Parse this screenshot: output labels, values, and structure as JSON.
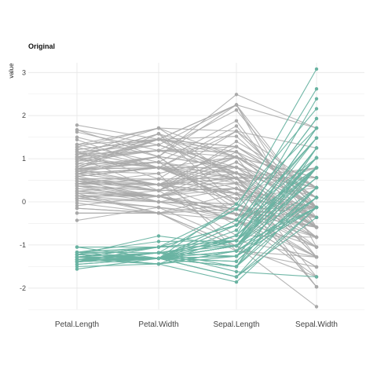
{
  "chart_data": {
    "type": "line",
    "subtype": "parallel-coordinates",
    "title": "Original",
    "ylabel": "value",
    "categories": [
      "Petal.Length",
      "Petal.Width",
      "Sepal.Length",
      "Sepal.Width"
    ],
    "ylim": [
      -2.45,
      3.15
    ],
    "yticks": [
      -2,
      -1,
      0,
      1,
      2,
      3
    ],
    "grid": true,
    "legend": "none",
    "colors": {
      "highlight": "#69b3a2",
      "other": "#a9a9a9",
      "grid": "#e6e6e6"
    },
    "series": [
      {
        "group": "highlight",
        "lines": [
          [
            -1.34,
            -1.31,
            -0.9,
            1.02
          ],
          [
            -1.34,
            -1.31,
            -1.14,
            -0.13
          ],
          [
            -1.39,
            -1.31,
            -1.38,
            0.33
          ],
          [
            -1.28,
            -1.31,
            -1.5,
            0.1
          ],
          [
            -1.34,
            -1.31,
            -1.02,
            1.25
          ],
          [
            -1.17,
            -1.05,
            -0.54,
            1.93
          ],
          [
            -1.34,
            -1.18,
            -1.5,
            0.79
          ],
          [
            -1.28,
            -1.31,
            -1.02,
            0.79
          ],
          [
            -1.34,
            -1.31,
            -1.74,
            -0.36
          ],
          [
            -1.28,
            -1.44,
            -1.14,
            0.1
          ],
          [
            -1.28,
            -1.31,
            -0.54,
            1.48
          ],
          [
            -1.22,
            -1.31,
            -1.26,
            0.79
          ],
          [
            -1.34,
            -1.44,
            -1.26,
            -0.13
          ],
          [
            -1.5,
            -1.44,
            -1.86,
            -0.13
          ],
          [
            -1.45,
            -1.31,
            -0.05,
            2.16
          ],
          [
            -1.28,
            -1.05,
            -0.17,
            3.08
          ],
          [
            -1.39,
            -1.05,
            -0.54,
            1.93
          ],
          [
            -1.34,
            -1.18,
            -0.9,
            1.02
          ],
          [
            -1.17,
            -1.18,
            -0.17,
            1.71
          ],
          [
            -1.28,
            -1.18,
            -0.9,
            1.71
          ],
          [
            -1.17,
            -1.31,
            -0.54,
            0.79
          ],
          [
            -1.28,
            -1.05,
            -0.9,
            1.48
          ],
          [
            -1.56,
            -1.31,
            -1.5,
            1.25
          ],
          [
            -1.17,
            -0.92,
            -0.9,
            0.56
          ],
          [
            -1.05,
            -1.31,
            -1.26,
            0.79
          ],
          [
            -1.22,
            -1.31,
            -1.02,
            -0.13
          ],
          [
            -1.22,
            -1.05,
            -1.02,
            0.79
          ],
          [
            -1.28,
            -1.31,
            -0.78,
            1.02
          ],
          [
            -1.34,
            -1.31,
            -0.78,
            0.79
          ],
          [
            -1.22,
            -1.31,
            -1.38,
            0.33
          ],
          [
            -1.22,
            -1.31,
            -1.26,
            0.1
          ],
          [
            -1.28,
            -1.05,
            -0.54,
            0.79
          ],
          [
            -1.28,
            -1.44,
            -0.78,
            2.39
          ],
          [
            -1.34,
            -1.31,
            -0.42,
            2.62
          ],
          [
            -1.28,
            -1.31,
            -1.14,
            0.1
          ],
          [
            -1.45,
            -1.31,
            -1.02,
            0.33
          ],
          [
            -1.39,
            -1.31,
            -0.42,
            1.02
          ],
          [
            -1.34,
            -1.44,
            -1.14,
            1.25
          ],
          [
            -1.39,
            -1.31,
            -1.74,
            -0.13
          ],
          [
            -1.28,
            -1.31,
            -0.9,
            0.79
          ],
          [
            -1.39,
            -1.18,
            -1.02,
            1.02
          ],
          [
            -1.39,
            -1.18,
            -1.62,
            -1.74
          ],
          [
            -1.39,
            -1.31,
            -1.74,
            0.33
          ],
          [
            -1.22,
            -0.79,
            -1.02,
            1.02
          ],
          [
            -1.05,
            -1.05,
            -0.9,
            1.71
          ],
          [
            -1.34,
            -1.18,
            -1.26,
            -0.13
          ],
          [
            -1.22,
            -1.31,
            -0.9,
            1.71
          ],
          [
            -1.34,
            -1.31,
            -1.5,
            0.33
          ],
          [
            -1.28,
            -1.31,
            -0.66,
            1.48
          ],
          [
            -1.34,
            -1.31,
            -1.02,
            0.56
          ]
        ]
      },
      {
        "group": "other",
        "lines": [
          [
            0.54,
            0.26,
            1.4,
            0.33
          ],
          [
            0.42,
            0.4,
            0.67,
            0.33
          ],
          [
            0.65,
            0.4,
            1.28,
            0.1
          ],
          [
            0.14,
            0.13,
            -0.42,
            -1.74
          ],
          [
            0.48,
            0.4,
            0.8,
            -0.59
          ],
          [
            0.42,
            0.13,
            -0.17,
            -0.59
          ],
          [
            0.54,
            0.53,
            0.55,
            0.56
          ],
          [
            -0.26,
            -0.26,
            -1.14,
            -1.51
          ],
          [
            0.48,
            0.13,
            0.92,
            -0.36
          ],
          [
            0.08,
            0.26,
            -0.78,
            -0.82
          ],
          [
            -0.15,
            -0.26,
            -1.02,
            -2.43
          ],
          [
            0.25,
            0.4,
            0.07,
            -0.13
          ],
          [
            0.14,
            -0.26,
            0.19,
            -1.97
          ],
          [
            0.54,
            0.26,
            0.31,
            -0.36
          ],
          [
            -0.09,
            0.13,
            -0.29,
            -0.36
          ],
          [
            0.37,
            0.26,
            1.04,
            0.1
          ],
          [
            0.42,
            0.4,
            -0.29,
            -0.13
          ],
          [
            0.2,
            -0.26,
            -0.05,
            -0.82
          ],
          [
            0.42,
            0.4,
            0.43,
            -1.97
          ],
          [
            0.08,
            -0.13,
            -0.29,
            -1.28
          ],
          [
            0.59,
            0.79,
            0.07,
            0.33
          ],
          [
            0.14,
            0.13,
            0.31,
            -0.59
          ],
          [
            0.65,
            0.4,
            0.55,
            -1.28
          ],
          [
            0.54,
            0.0,
            0.31,
            -0.59
          ],
          [
            0.31,
            0.13,
            0.67,
            -0.36
          ],
          [
            0.37,
            0.26,
            0.92,
            -0.13
          ],
          [
            0.59,
            0.26,
            1.16,
            -0.59
          ],
          [
            0.71,
            0.66,
            1.04,
            -0.13
          ],
          [
            0.42,
            0.4,
            0.19,
            -0.36
          ],
          [
            -0.15,
            -0.26,
            -0.17,
            -1.05
          ],
          [
            0.03,
            -0.13,
            -0.42,
            -1.51
          ],
          [
            -0.03,
            -0.26,
            -0.42,
            -1.51
          ],
          [
            0.08,
            0.0,
            -0.05,
            -0.82
          ],
          [
            0.76,
            0.79,
            0.19,
            -0.82
          ],
          [
            0.42,
            0.4,
            -0.54,
            -0.13
          ],
          [
            0.42,
            0.53,
            0.19,
            0.79
          ],
          [
            0.54,
            0.4,
            1.04,
            0.1
          ],
          [
            0.37,
            0.13,
            0.55,
            -1.74
          ],
          [
            0.2,
            0.13,
            -0.29,
            -0.13
          ],
          [
            0.14,
            0.13,
            -0.42,
            -1.28
          ],
          [
            0.37,
            0.0,
            -0.42,
            -1.05
          ],
          [
            0.48,
            0.26,
            0.31,
            -0.13
          ],
          [
            0.14,
            0.0,
            -0.05,
            -1.05
          ],
          [
            -0.26,
            -0.26,
            -1.02,
            -1.74
          ],
          [
            0.25,
            0.13,
            -0.29,
            -0.82
          ],
          [
            0.25,
            0.0,
            -0.17,
            -0.13
          ],
          [
            0.25,
            0.13,
            -0.17,
            -0.36
          ],
          [
            0.31,
            0.13,
            0.43,
            -0.36
          ],
          [
            -0.43,
            -0.13,
            -0.9,
            -1.28
          ],
          [
            0.2,
            0.13,
            -0.17,
            -0.59
          ],
          [
            1.27,
            1.71,
            0.55,
            0.56
          ],
          [
            0.76,
            0.92,
            -0.05,
            -0.82
          ],
          [
            1.21,
            1.45,
            1.52,
            -0.13
          ],
          [
            1.04,
            0.79,
            0.55,
            -0.36
          ],
          [
            1.16,
            1.32,
            0.8,
            -0.13
          ],
          [
            1.62,
            1.19,
            2.13,
            -0.13
          ],
          [
            0.42,
            0.66,
            -1.14,
            -1.28
          ],
          [
            1.44,
            0.79,
            1.76,
            -0.36
          ],
          [
            1.16,
            0.79,
            1.04,
            -1.28
          ],
          [
            1.33,
            1.71,
            1.64,
            1.25
          ],
          [
            0.76,
            1.05,
            0.8,
            0.33
          ],
          [
            0.88,
            0.92,
            0.67,
            -0.82
          ],
          [
            0.99,
            1.19,
            1.16,
            -0.13
          ],
          [
            0.71,
            1.05,
            -0.17,
            -1.28
          ],
          [
            0.76,
            1.58,
            -0.05,
            -0.59
          ],
          [
            0.88,
            1.45,
            0.67,
            0.33
          ],
          [
            0.99,
            0.79,
            0.8,
            -0.13
          ],
          [
            1.67,
            1.32,
            2.25,
            1.71
          ],
          [
            1.78,
            1.45,
            2.25,
            -1.05
          ],
          [
            0.71,
            0.4,
            0.19,
            -1.97
          ],
          [
            1.1,
            1.45,
            1.28,
            0.33
          ],
          [
            0.65,
            1.05,
            -0.29,
            -0.59
          ],
          [
            1.67,
            1.05,
            2.25,
            -0.59
          ],
          [
            0.65,
            0.79,
            0.55,
            -0.82
          ],
          [
            1.1,
            1.19,
            1.04,
            0.56
          ],
          [
            1.27,
            0.79,
            1.64,
            0.33
          ],
          [
            0.59,
            0.79,
            0.43,
            -0.59
          ],
          [
            0.65,
            0.79,
            0.31,
            -0.13
          ],
          [
            1.04,
            1.19,
            0.67,
            -0.59
          ],
          [
            1.16,
            0.53,
            1.64,
            -0.13
          ],
          [
            1.33,
            0.92,
            1.88,
            -0.59
          ],
          [
            1.5,
            1.05,
            2.49,
            1.71
          ],
          [
            1.04,
            1.32,
            0.67,
            -0.59
          ],
          [
            0.76,
            0.4,
            0.55,
            -0.59
          ],
          [
            1.04,
            0.26,
            0.31,
            -1.05
          ],
          [
            1.33,
            1.45,
            2.25,
            -0.13
          ],
          [
            1.04,
            1.58,
            0.55,
            0.79
          ],
          [
            0.99,
            0.79,
            0.67,
            0.1
          ],
          [
            0.59,
            0.79,
            0.19,
            -0.13
          ],
          [
            0.94,
            1.19,
            1.28,
            0.1
          ],
          [
            1.04,
            1.58,
            1.04,
            0.1
          ],
          [
            0.76,
            1.45,
            1.28,
            0.1
          ],
          [
            0.76,
            0.92,
            -0.05,
            -0.82
          ],
          [
            1.21,
            1.45,
            1.16,
            0.33
          ],
          [
            1.1,
            1.71,
            1.04,
            0.56
          ],
          [
            0.82,
            1.45,
            1.04,
            -0.13
          ],
          [
            0.71,
            0.92,
            0.55,
            -1.28
          ],
          [
            0.82,
            1.05,
            0.8,
            -0.13
          ],
          [
            0.94,
            1.45,
            0.43,
            0.79
          ],
          [
            0.76,
            0.79,
            0.07,
            -0.13
          ]
        ]
      }
    ]
  }
}
